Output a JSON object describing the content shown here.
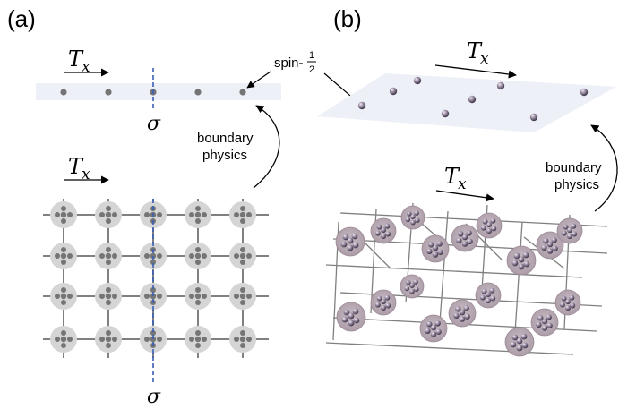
{
  "panels": {
    "a": {
      "label": "(a)",
      "translation_top": {
        "symbol": "T",
        "subscript": "x"
      },
      "translation_bottom": {
        "symbol": "T",
        "subscript": "x"
      },
      "reflection_top": "σ",
      "reflection_bottom": "σ",
      "boundary_label_line1": "boundary",
      "boundary_label_line2": "physics",
      "spin_label_prefix": "spin-",
      "spin_fraction_num": "1",
      "spin_fraction_den": "2"
    },
    "b": {
      "label": "(b)",
      "translation_top": {
        "symbol": "T",
        "subscript": "x"
      },
      "translation_bottom": {
        "symbol": "T",
        "subscript": "x"
      },
      "boundary_label_line1": "boundary",
      "boundary_label_line2": "physics"
    }
  },
  "colors": {
    "boundary_band": "#eef0f8",
    "site_disk": "#d5d5d5",
    "dot": "#757575",
    "grid_line": "#808080",
    "dashed_line": "#3a5fb5",
    "sphere_light": "#e2dbe6",
    "sphere_dark": "#4a3f55",
    "arrow": "#000000"
  }
}
